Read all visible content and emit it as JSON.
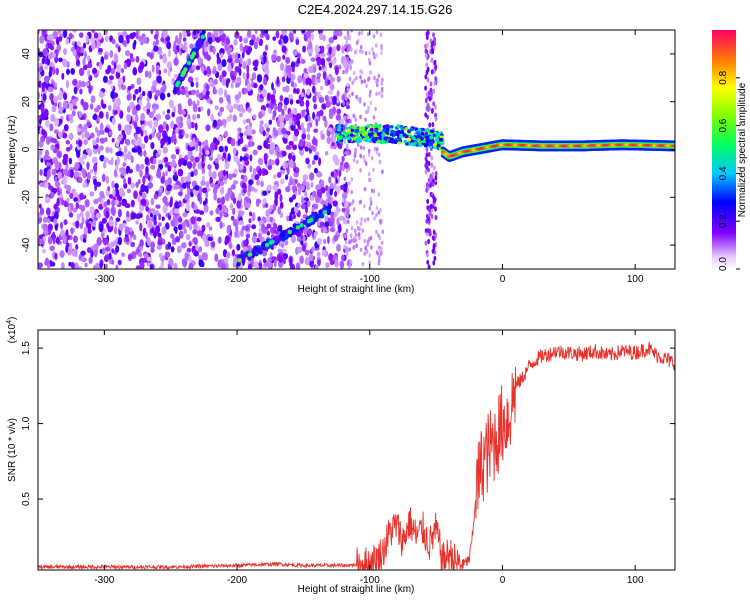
{
  "title": "C2E4.2024.297.14.15.G26",
  "chart_data": [
    {
      "type": "heatmap",
      "xlabel": "Height of straight line (km)",
      "ylabel": "Frequency (Hz)",
      "xlim": [
        -350,
        130
      ],
      "ylim": [
        -50,
        50
      ],
      "xticks": [
        -300,
        -200,
        -100,
        0,
        100
      ],
      "yticks": [
        -40,
        -20,
        0,
        20,
        40
      ],
      "colorbar": {
        "label": "Normalized spectral amplitude",
        "range": [
          0,
          1
        ],
        "ticks": [
          0.0,
          0.2,
          0.4,
          0.6,
          0.8
        ]
      },
      "features": {
        "carrier_line": {
          "x": [
            -45,
            -40,
            -30,
            0,
            30,
            60,
            90,
            130
          ],
          "y": [
            -1,
            -3,
            -1,
            2,
            1.5,
            1.5,
            2,
            1.5
          ]
        },
        "tracks": [
          {
            "x": [
              -247,
              -225
            ],
            "y": [
              25,
              48
            ]
          },
          {
            "x": [
              -200,
              -130
            ],
            "y": [
              -47,
              -25
            ]
          }
        ],
        "cluster": {
          "x": [
            -125,
            -45
          ],
          "y": [
            3,
            10
          ]
        }
      }
    },
    {
      "type": "line",
      "xlabel": "Height of straight line (km)",
      "ylabel": "SNR (10 * v/v)",
      "y_scale_note": "(x10^4)",
      "xlim": [
        -350,
        130
      ],
      "ylim": [
        0.03,
        1.62
      ],
      "xticks": [
        -300,
        -200,
        -100,
        0,
        100
      ],
      "yticks": [
        0.5,
        1.0,
        1.5
      ],
      "series_color": "#e8312b",
      "x": [
        -350,
        -300,
        -250,
        -200,
        -170,
        -150,
        -120,
        -100,
        -95,
        -90,
        -85,
        -80,
        -75,
        -70,
        -65,
        -60,
        -55,
        -50,
        -45,
        -40,
        -35,
        -30,
        -25,
        -22,
        -20,
        -15,
        -10,
        -5,
        0,
        5,
        10,
        15,
        20,
        25,
        30,
        35,
        40,
        50,
        60,
        70,
        80,
        90,
        100,
        110,
        115,
        120,
        125,
        130
      ],
      "y": [
        0.05,
        0.05,
        0.05,
        0.06,
        0.07,
        0.06,
        0.06,
        0.07,
        0.1,
        0.15,
        0.28,
        0.33,
        0.22,
        0.35,
        0.25,
        0.3,
        0.2,
        0.3,
        0.09,
        0.14,
        0.08,
        0.06,
        0.1,
        0.3,
        0.55,
        0.75,
        0.82,
        0.9,
        1.0,
        1.05,
        1.25,
        1.3,
        1.38,
        1.42,
        1.45,
        1.46,
        1.48,
        1.47,
        1.46,
        1.48,
        1.45,
        1.48,
        1.47,
        1.5,
        1.46,
        1.44,
        1.42,
        1.4
      ]
    }
  ]
}
